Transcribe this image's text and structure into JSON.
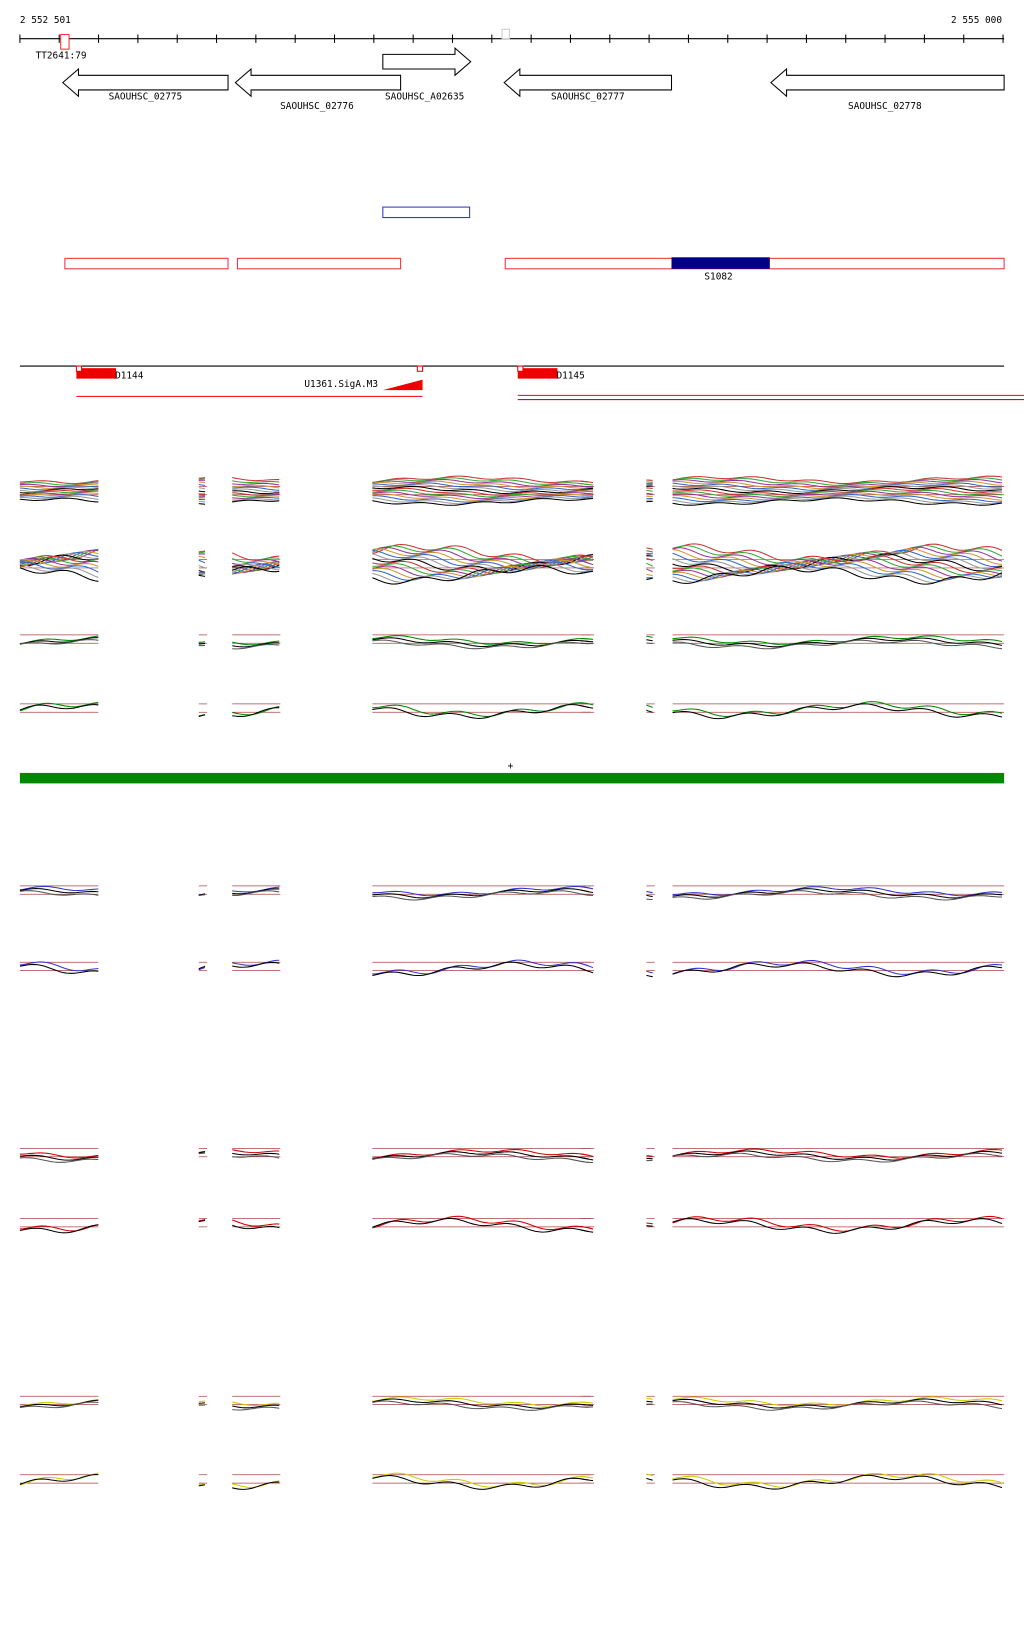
{
  "ruler": {
    "start": "2 552 501",
    "end": "2 555 000"
  },
  "features": {
    "tt": "TT2641:79",
    "genes": [
      "SAOUHSC_02775",
      "SAOUHSC_02776",
      "SAOUHSC_A02635",
      "SAOUHSC_02777",
      "SAOUHSC_02778"
    ],
    "segment": "S1082"
  },
  "regions": {
    "left": "D1144",
    "middle": "U1361.SigA.M3",
    "right": "D1145"
  },
  "strand": "+"
}
